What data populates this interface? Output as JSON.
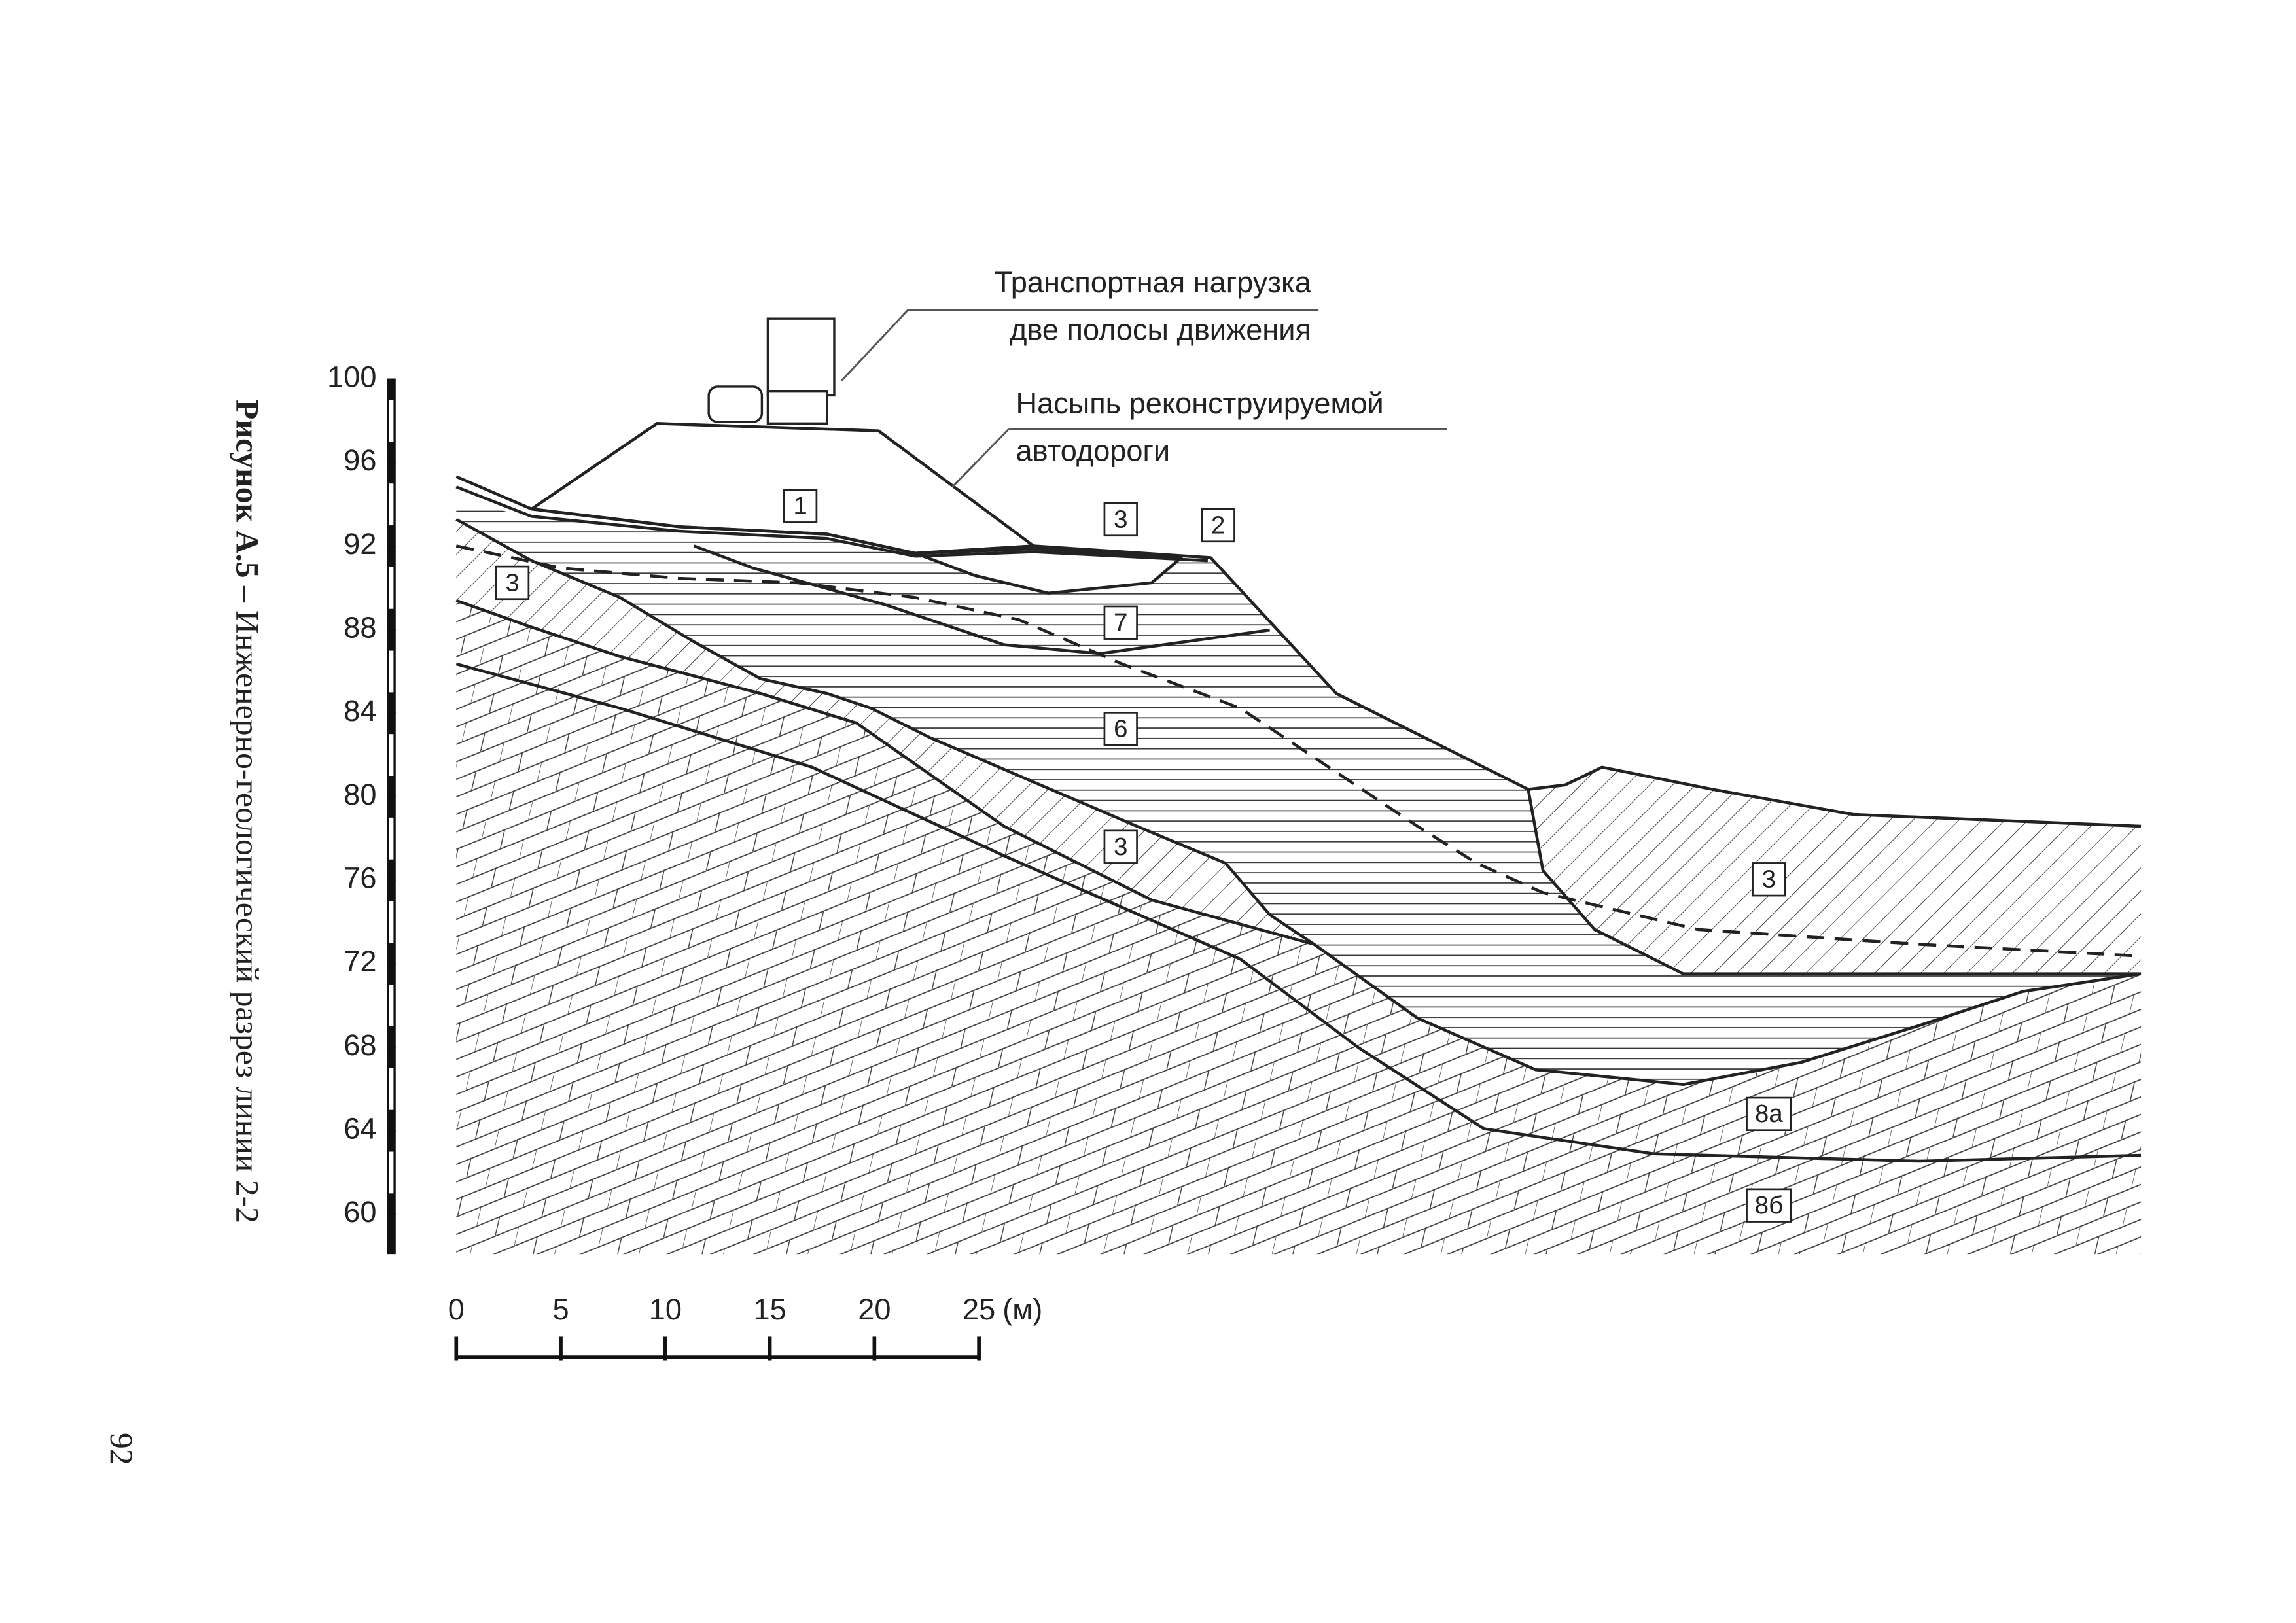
{
  "caption": {
    "prefix": "Рисунок А.5",
    "text": "– Инженерно-геологический разрез линии 2-2"
  },
  "page_number": "92",
  "elevation_scale": {
    "ticks": [
      60,
      64,
      68,
      72,
      76,
      80,
      84,
      88,
      92,
      96,
      100
    ]
  },
  "distance_scale": {
    "ticks": [
      0,
      5,
      10,
      15,
      20,
      25
    ],
    "unit": "(м)"
  },
  "annotations": [
    {
      "lines": [
        "Транспортная нагрузка",
        "две полосы движения"
      ]
    },
    {
      "lines": [
        "Насыпь реконструируемой",
        "автодороги"
      ]
    }
  ],
  "layer_labels": [
    "1",
    "3",
    "2",
    "3",
    "7",
    "6",
    "3",
    "3",
    "8а",
    "8б"
  ]
}
